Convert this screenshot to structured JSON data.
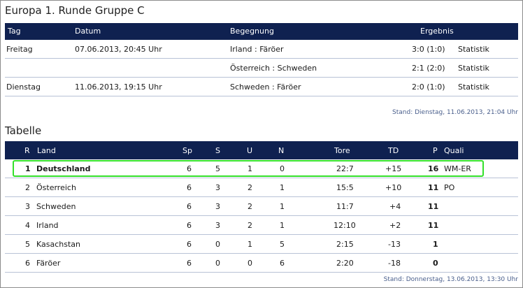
{
  "group_title": "Europa 1. Runde Gruppe C",
  "matches_header": {
    "tag": "Tag",
    "datum": "Datum",
    "begegnung": "Begegnung",
    "ergebnis": "Ergebnis"
  },
  "matches": [
    {
      "tag": "Freitag",
      "datum": "07.06.2013, 20:45 Uhr",
      "begegnung": "Irland : Färöer",
      "ergebnis": "3:0 (1:0)",
      "statistik": "Statistik"
    },
    {
      "tag": "",
      "datum": "",
      "begegnung": "Österreich : Schweden",
      "ergebnis": "2:1 (2:0)",
      "statistik": "Statistik"
    },
    {
      "tag": "Dienstag",
      "datum": "11.06.2013, 19:15 Uhr",
      "begegnung": "Schweden : Färöer",
      "ergebnis": "2:0 (1:0)",
      "statistik": "Statistik"
    }
  ],
  "matches_stand": "Stand: Dienstag, 11.06.2013, 21:04 Uhr",
  "table_title": "Tabelle",
  "table_header": {
    "r": "R",
    "land": "Land",
    "sp": "Sp",
    "s": "S",
    "u": "U",
    "n": "N",
    "tore": "Tore",
    "td": "TD",
    "p": "P",
    "quali": "Quali"
  },
  "table_rows": [
    {
      "r": "1",
      "land": "Deutschland",
      "sp": "6",
      "s": "5",
      "u": "1",
      "n": "0",
      "tore": "22:7",
      "td": "+15",
      "p": "16",
      "quali": "WM-ER"
    },
    {
      "r": "2",
      "land": "Österreich",
      "sp": "6",
      "s": "3",
      "u": "2",
      "n": "1",
      "tore": "15:5",
      "td": "+10",
      "p": "11",
      "quali": "PO"
    },
    {
      "r": "3",
      "land": "Schweden",
      "sp": "6",
      "s": "3",
      "u": "2",
      "n": "1",
      "tore": "11:7",
      "td": "+4",
      "p": "11",
      "quali": ""
    },
    {
      "r": "4",
      "land": "Irland",
      "sp": "6",
      "s": "3",
      "u": "2",
      "n": "1",
      "tore": "12:10",
      "td": "+2",
      "p": "11",
      "quali": ""
    },
    {
      "r": "5",
      "land": "Kasachstan",
      "sp": "6",
      "s": "0",
      "u": "1",
      "n": "5",
      "tore": "2:15",
      "td": "-13",
      "p": "1",
      "quali": ""
    },
    {
      "r": "6",
      "land": "Färöer",
      "sp": "6",
      "s": "0",
      "u": "0",
      "n": "6",
      "tore": "2:20",
      "td": "-18",
      "p": "0",
      "quali": ""
    }
  ],
  "table_stand": "Stand: Donnerstag, 13.06.2013, 13:30 Uhr",
  "colors": {
    "header_bg": "#0f2150",
    "highlight": "#33e02a",
    "stand_text": "#4a5f8c"
  }
}
